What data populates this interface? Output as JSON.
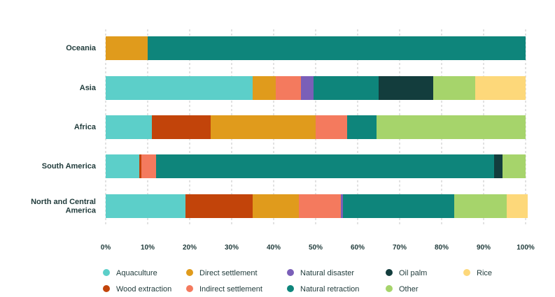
{
  "chart_data": {
    "type": "bar",
    "orientation": "horizontal",
    "stacked": true,
    "percent": true,
    "title": "",
    "xlabel": "",
    "ylabel": "",
    "xlim": [
      0,
      100
    ],
    "grid": "vertical dashed",
    "legend_position": "bottom",
    "x_ticks": [
      "0%",
      "10%",
      "20%",
      "30%",
      "40%",
      "50%",
      "60%",
      "70%",
      "80%",
      "90%",
      "100%"
    ],
    "categories": [
      "Oceania",
      "Asia",
      "Africa",
      "South America",
      "North and Central America"
    ],
    "series": [
      {
        "name": "Aquaculture",
        "color": "#5ccfc9",
        "values": [
          0,
          35,
          11,
          8,
          19
        ]
      },
      {
        "name": "Wood extraction",
        "color": "#c2440a",
        "values": [
          0,
          0,
          14,
          0.5,
          16
        ]
      },
      {
        "name": "Direct settlement",
        "color": "#e09b1c",
        "values": [
          10,
          5.5,
          25,
          0,
          11
        ]
      },
      {
        "name": "Indirect settlement",
        "color": "#f47a5e",
        "values": [
          0,
          6,
          7.5,
          3.5,
          10
        ]
      },
      {
        "name": "Natural disaster",
        "color": "#7a5fb8",
        "values": [
          0,
          3,
          0,
          0,
          0.5
        ]
      },
      {
        "name": "Natural retraction",
        "color": "#0e857b",
        "values": [
          90,
          15.5,
          7,
          80.5,
          26.5
        ]
      },
      {
        "name": "Oil palm",
        "color": "#133d3d",
        "values": [
          0,
          13,
          0,
          2,
          0
        ]
      },
      {
        "name": "Other",
        "color": "#a6d46b",
        "values": [
          0,
          10,
          35.5,
          5.5,
          12.5
        ]
      },
      {
        "name": "Rice",
        "color": "#fdd87a",
        "values": [
          0,
          12,
          0,
          0,
          5
        ]
      }
    ]
  }
}
